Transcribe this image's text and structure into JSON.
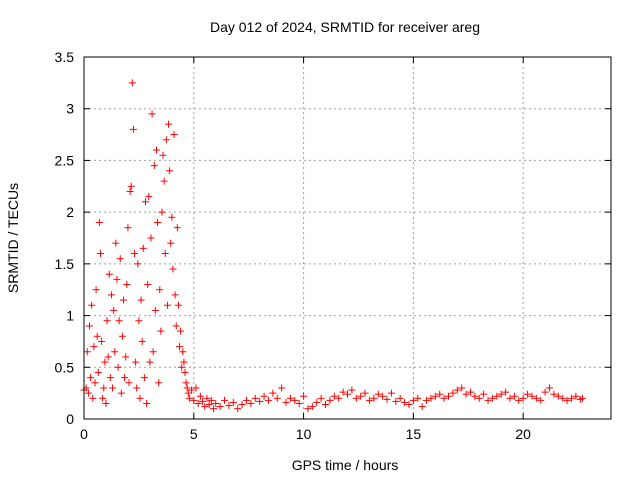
{
  "chart_data": {
    "type": "scatter",
    "title": "Day 012 of 2024, SRMTID for receiver areg",
    "xlabel": "GPS time / hours",
    "ylabel": "SRMTID / TECUs",
    "xlim": [
      0,
      24
    ],
    "ylim": [
      0,
      3.5
    ],
    "xticks": [
      0,
      5,
      10,
      15,
      20
    ],
    "yticks": [
      0,
      0.5,
      1,
      1.5,
      2,
      2.5,
      3,
      3.5
    ],
    "xtick_labels": [
      "0",
      "5",
      "10",
      "15",
      "20"
    ],
    "ytick_labels": [
      "0",
      "0.5",
      "1",
      "1.5",
      "2",
      "2.5",
      "3",
      "3.5"
    ],
    "grid": true,
    "marker": "+",
    "color": "#ff0000",
    "series": [
      {
        "name": "SRMTID",
        "x": [
          0.0,
          0.1,
          0.15,
          0.2,
          0.25,
          0.3,
          0.35,
          0.4,
          0.45,
          0.5,
          0.55,
          0.6,
          0.65,
          0.7,
          0.75,
          0.8,
          0.85,
          0.9,
          0.95,
          1.0,
          1.05,
          1.1,
          1.15,
          1.2,
          1.25,
          1.3,
          1.35,
          1.4,
          1.45,
          1.5,
          1.55,
          1.6,
          1.65,
          1.7,
          1.75,
          1.8,
          1.85,
          1.9,
          1.95,
          2.0,
          2.05,
          2.1,
          2.15,
          2.2,
          2.25,
          2.3,
          2.35,
          2.4,
          2.45,
          2.5,
          2.55,
          2.6,
          2.65,
          2.7,
          2.75,
          2.8,
          2.85,
          2.9,
          2.95,
          3.0,
          3.05,
          3.1,
          3.15,
          3.2,
          3.25,
          3.3,
          3.35,
          3.4,
          3.45,
          3.5,
          3.55,
          3.6,
          3.65,
          3.7,
          3.75,
          3.8,
          3.85,
          3.9,
          3.95,
          4.0,
          4.05,
          4.1,
          4.15,
          4.2,
          4.25,
          4.3,
          4.35,
          4.4,
          4.45,
          4.5,
          4.55,
          4.6,
          4.65,
          4.7,
          4.75,
          4.8,
          4.9,
          5.0,
          5.1,
          5.2,
          5.3,
          5.4,
          5.5,
          5.6,
          5.7,
          5.8,
          5.9,
          6.0,
          6.2,
          6.4,
          6.6,
          6.8,
          7.0,
          7.2,
          7.4,
          7.6,
          7.8,
          8.0,
          8.2,
          8.4,
          8.6,
          8.8,
          9.0,
          9.2,
          9.4,
          9.6,
          9.8,
          10.0,
          10.2,
          10.4,
          10.6,
          10.8,
          11.0,
          11.2,
          11.4,
          11.6,
          11.8,
          12.0,
          12.2,
          12.4,
          12.6,
          12.8,
          13.0,
          13.2,
          13.4,
          13.6,
          13.8,
          14.0,
          14.2,
          14.4,
          14.6,
          14.8,
          15.0,
          15.2,
          15.4,
          15.6,
          15.8,
          16.0,
          16.2,
          16.4,
          16.6,
          16.8,
          17.0,
          17.2,
          17.4,
          17.6,
          17.8,
          18.0,
          18.2,
          18.4,
          18.6,
          18.8,
          19.0,
          19.2,
          19.4,
          19.6,
          19.8,
          20.0,
          20.2,
          20.4,
          20.6,
          20.8,
          21.0,
          21.2,
          21.4,
          21.6,
          21.8,
          22.0,
          22.2,
          22.4,
          22.6,
          22.7
        ],
        "y": [
          0.28,
          0.3,
          0.65,
          0.25,
          0.9,
          0.4,
          1.1,
          0.2,
          0.7,
          0.35,
          1.25,
          0.8,
          0.45,
          1.9,
          1.6,
          0.75,
          0.2,
          0.3,
          0.55,
          0.15,
          0.95,
          0.6,
          1.4,
          0.4,
          1.2,
          0.3,
          1.05,
          0.65,
          1.7,
          1.35,
          0.5,
          0.95,
          1.55,
          0.25,
          0.8,
          1.15,
          0.4,
          0.6,
          1.3,
          1.85,
          0.35,
          2.2,
          2.25,
          3.25,
          2.8,
          1.6,
          0.55,
          0.3,
          1.5,
          0.95,
          0.2,
          1.15,
          0.75,
          1.65,
          0.4,
          2.1,
          0.15,
          1.3,
          2.15,
          0.55,
          1.75,
          2.95,
          0.65,
          2.45,
          1.05,
          2.6,
          1.9,
          0.35,
          1.25,
          0.85,
          2.0,
          2.55,
          2.3,
          1.6,
          2.7,
          1.1,
          2.85,
          2.4,
          1.7,
          1.95,
          1.45,
          2.75,
          1.2,
          0.9,
          1.85,
          1.1,
          0.7,
          0.85,
          0.5,
          0.65,
          0.55,
          0.45,
          0.35,
          0.3,
          0.25,
          0.2,
          0.28,
          0.18,
          0.3,
          0.15,
          0.22,
          0.17,
          0.12,
          0.2,
          0.14,
          0.18,
          0.1,
          0.15,
          0.12,
          0.18,
          0.13,
          0.16,
          0.1,
          0.14,
          0.18,
          0.15,
          0.2,
          0.17,
          0.22,
          0.18,
          0.25,
          0.2,
          0.3,
          0.16,
          0.2,
          0.18,
          0.15,
          0.22,
          0.1,
          0.12,
          0.16,
          0.2,
          0.14,
          0.18,
          0.22,
          0.2,
          0.26,
          0.24,
          0.28,
          0.2,
          0.22,
          0.25,
          0.18,
          0.2,
          0.24,
          0.22,
          0.19,
          0.25,
          0.17,
          0.2,
          0.16,
          0.14,
          0.18,
          0.2,
          0.12,
          0.18,
          0.2,
          0.22,
          0.24,
          0.2,
          0.22,
          0.25,
          0.28,
          0.3,
          0.24,
          0.26,
          0.22,
          0.2,
          0.24,
          0.18,
          0.2,
          0.22,
          0.24,
          0.26,
          0.2,
          0.22,
          0.18,
          0.2,
          0.24,
          0.22,
          0.2,
          0.18,
          0.26,
          0.3,
          0.24,
          0.22,
          0.2,
          0.18,
          0.2,
          0.22,
          0.19,
          0.2
        ]
      }
    ]
  }
}
